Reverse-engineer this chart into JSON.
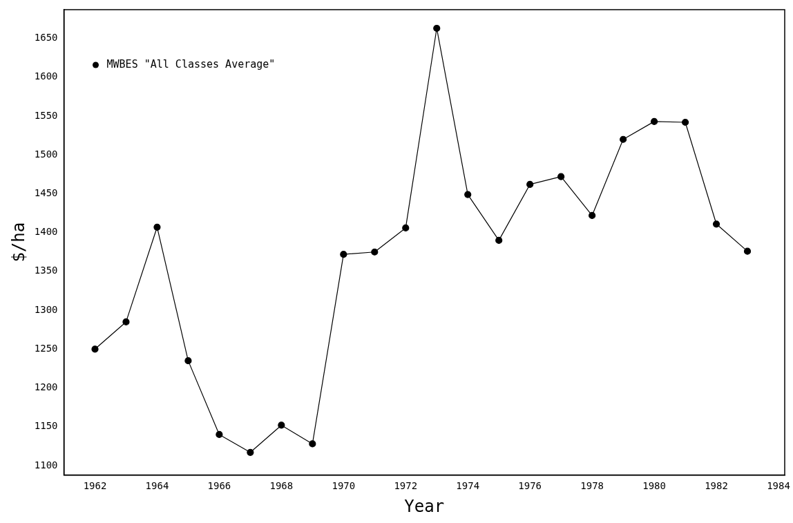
{
  "chart_data": {
    "type": "line",
    "xlabel": "Year",
    "ylabel": "$/ha",
    "x": [
      1962,
      1963,
      1964,
      1965,
      1966,
      1967,
      1968,
      1969,
      1970,
      1971,
      1972,
      1973,
      1974,
      1975,
      1976,
      1977,
      1978,
      1979,
      1980,
      1981,
      1982,
      1983
    ],
    "series": [
      {
        "name": "MWBES \"All Classes Average\"",
        "color": "#000000",
        "values": [
          1250,
          1285,
          1407,
          1235,
          1140,
          1117,
          1152,
          1128,
          1372,
          1375,
          1406,
          1663,
          1449,
          1390,
          1462,
          1472,
          1422,
          1520,
          1543,
          1542,
          1411,
          1376
        ]
      }
    ],
    "xlim": [
      1961,
      1984.2
    ],
    "xticks": [
      1962,
      1964,
      1966,
      1968,
      1970,
      1972,
      1974,
      1976,
      1978,
      1980,
      1982,
      1984
    ],
    "ylim": [
      1088,
      1687
    ],
    "yticks": [
      1100,
      1150,
      1200,
      1250,
      1300,
      1350,
      1400,
      1450,
      1500,
      1550,
      1600,
      1650
    ],
    "grid": false,
    "legend": "top left",
    "marker": "circle",
    "line_style": "solid"
  }
}
